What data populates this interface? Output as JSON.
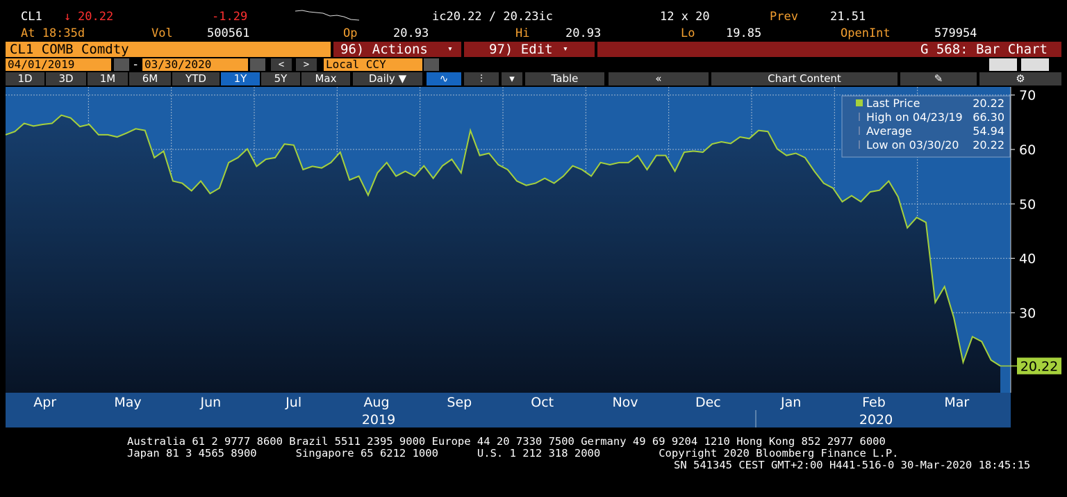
{
  "header": {
    "ticker": "CL1",
    "last": "20.22",
    "change": "-1.29",
    "bid_ask": "ic20.22 / 20.23ic",
    "size": "12 x 20",
    "prev_label": "Prev",
    "prev": "21.51",
    "time": "At 18:35d",
    "vol_label": "Vol",
    "vol": "500561",
    "open_label": "Op",
    "open": "20.93",
    "high_label": "Hi",
    "high": "20.93",
    "low_label": "Lo",
    "low": "19.85",
    "oi_label": "OpenInt",
    "oi": "579954"
  },
  "toolbar": {
    "security": "CL1 COMB Comdty",
    "actions": "96) Actions",
    "edit": "97) Edit",
    "function": "G 568: Bar Chart",
    "start_date": "04/01/2019",
    "end_date": "03/30/2020",
    "currency": "Local CCY",
    "ranges": [
      "1D",
      "3D",
      "1M",
      "6M",
      "YTD",
      "1Y",
      "5Y",
      "Max"
    ],
    "period": "Daily",
    "table": "Table",
    "chart_content": "Chart Content"
  },
  "chart_data": {
    "type": "line",
    "series": [
      {
        "name": "Last Price",
        "color": "#a6d13c",
        "last_label": "20.22",
        "values": [
          62.7,
          63.3,
          64.8,
          64.3,
          64.6,
          64.8,
          66.3,
          65.8,
          64.2,
          64.6,
          62.7,
          62.7,
          62.3,
          63.0,
          63.8,
          63.5,
          58.5,
          59.7,
          54.2,
          53.8,
          52.4,
          54.2,
          51.9,
          52.9,
          57.6,
          58.5,
          60.1,
          56.9,
          58.2,
          58.5,
          61.0,
          60.8,
          56.3,
          56.9,
          56.6,
          57.6,
          59.5,
          54.4,
          55.1,
          51.6,
          55.7,
          57.6,
          55.1,
          56.0,
          55.1,
          57.0,
          54.7,
          57.0,
          58.2,
          55.7,
          63.5,
          58.9,
          59.3,
          57.2,
          56.3,
          54.2,
          53.4,
          53.8,
          54.7,
          53.8,
          55.1,
          57.0,
          56.3,
          55.1,
          57.6,
          57.2,
          57.6,
          57.6,
          58.9,
          56.3,
          58.9,
          58.9,
          56.0,
          59.5,
          59.7,
          59.5,
          61.0,
          61.4,
          61.1,
          62.3,
          62.0,
          63.5,
          63.3,
          60.1,
          58.9,
          59.3,
          58.5,
          56.0,
          53.8,
          52.9,
          50.4,
          51.5,
          50.4,
          52.2,
          52.5,
          54.2,
          51.3,
          45.6,
          47.5,
          46.6,
          31.9,
          34.8,
          29.1,
          20.9,
          25.6,
          24.7,
          21.3,
          20.22
        ]
      }
    ],
    "months": [
      "Apr",
      "May",
      "Jun",
      "Jul",
      "Aug",
      "Sep",
      "Oct",
      "Nov",
      "Dec",
      "Jan",
      "Feb",
      "Mar"
    ],
    "years": [
      "2019",
      "2020"
    ],
    "ylim": [
      15.3,
      71.5
    ],
    "yticks": [
      30,
      40,
      50,
      60,
      70
    ],
    "grid": true,
    "stats": [
      {
        "label": "High on 04/23/19",
        "value": "66.30"
      },
      {
        "label": "Average",
        "value": "54.94"
      },
      {
        "label": "Low on 03/30/20",
        "value": "20.22"
      }
    ]
  },
  "footer": {
    "lines": [
      "Australia 61 2 9777 8600 Brazil 5511 2395 9000 Europe 44 20 7330 7500 Germany 49 69 9204 1210 Hong Kong 852 2977 6000",
      "Japan 81 3 4565 8900      Singapore 65 6212 1000      U.S. 1 212 318 2000         Copyright 2020 Bloomberg Finance L.P.",
      "SN 541345 CEST GMT+2:00 H441-516-0 30-Mar-2020 18:45:15"
    ]
  }
}
